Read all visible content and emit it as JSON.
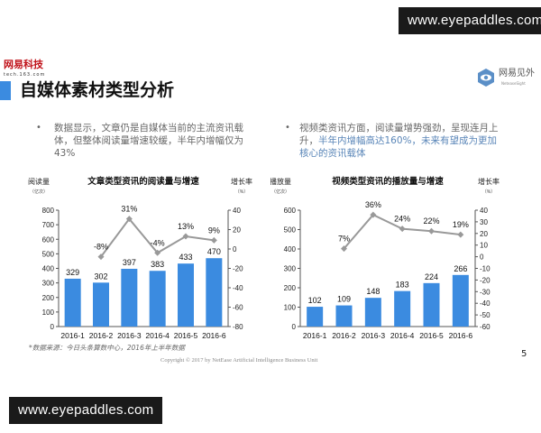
{
  "watermark_top": "www.eyepaddles.com",
  "watermark_bottom": "www.eyepaddles.com",
  "header": {
    "brand_logo": "网易科技",
    "brand_sub": "tech.163.com",
    "title": "自媒体素材类型分析",
    "partner_logo": "网易见外",
    "partner_sub": "NeteaseSight",
    "accent": "#3b8be0"
  },
  "bullets": [
    {
      "text": "数据显示，文章仍是自媒体当前的主流资讯载体，但整体阅读量增速较缓，半年内增幅仅为43%"
    },
    {
      "text_plain": "视频类资讯方面，阅读量增势强劲，呈现连月上升，",
      "text_highlight": "半年内增幅高达160%，未来有望成为更加核心的资讯载体"
    }
  ],
  "chart_data": [
    {
      "type": "bar",
      "title": "文章类型资讯的阅读量与增速",
      "ylabel": "阅读量",
      "yunit": "（亿次）",
      "y2label": "增长率",
      "y2unit": "（%）",
      "categories": [
        "2016-1",
        "2016-2",
        "2016-3",
        "2016-4",
        "2016-5",
        "2016-6"
      ],
      "ylim": [
        0,
        800
      ],
      "yticks": [
        "800",
        "700",
        "600",
        "500",
        "400",
        "300",
        "200",
        "100",
        "0"
      ],
      "y2lim": [
        -80,
        40
      ],
      "y2ticks": [
        "40",
        "20",
        "0",
        "-20",
        "-40",
        "-60",
        "-80"
      ],
      "values": [
        329,
        302,
        397,
        383,
        433,
        470
      ],
      "value_labels": [
        "329",
        "302",
        "397",
        "383",
        "433",
        "470"
      ],
      "growth": [
        null,
        -8,
        31,
        -4,
        13,
        9
      ],
      "growth_labels": [
        "",
        "-8%",
        "31%",
        "-4%",
        "13%",
        "9%"
      ],
      "bar_color": "#3b8be0",
      "line_color": "#999999"
    },
    {
      "type": "bar",
      "title": "视频类型资讯的播放量与增速",
      "ylabel": "播放量",
      "yunit": "（亿次）",
      "y2label": "增长率",
      "y2unit": "（%）",
      "categories": [
        "2016-1",
        "2016-2",
        "2016-3",
        "2016-4",
        "2016-5",
        "2016-6"
      ],
      "ylim": [
        0,
        600
      ],
      "yticks": [
        "600",
        "500",
        "400",
        "300",
        "200",
        "100",
        "0"
      ],
      "y2lim": [
        -60,
        40
      ],
      "y2ticks": [
        "40",
        "30",
        "20",
        "10",
        "0",
        "-10",
        "-20",
        "-30",
        "-40",
        "-50",
        "-60"
      ],
      "values": [
        102,
        109,
        148,
        183,
        224,
        266
      ],
      "value_labels": [
        "102",
        "109",
        "148",
        "183",
        "224",
        "266"
      ],
      "growth": [
        null,
        7,
        36,
        24,
        22,
        19
      ],
      "growth_labels": [
        "",
        "7%",
        "36%",
        "24%",
        "22%",
        "19%"
      ],
      "bar_color": "#3b8be0",
      "line_color": "#999999"
    }
  ],
  "footer": {
    "source": "*数据来源：今日头条算数中心，2016年上半年数据",
    "copyright": "Copyright © 2017 by NetEase Artificial Intelligence Business Unit",
    "page_number": "5"
  }
}
